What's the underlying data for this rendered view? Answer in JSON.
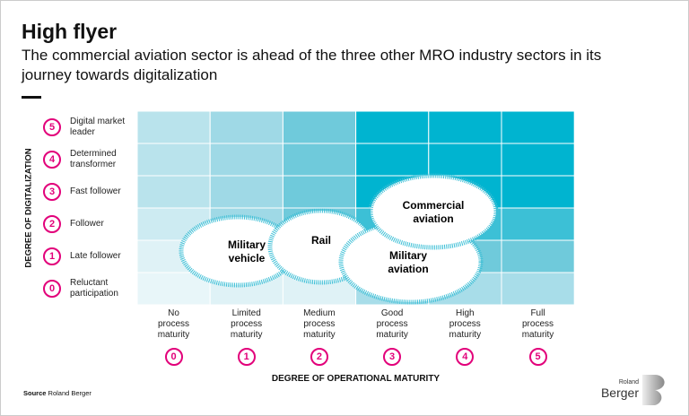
{
  "title": "High flyer",
  "subtitle": "The commercial aviation sector is ahead of the three other MRO industry sectors in its journey towards digitalization",
  "y_axis": {
    "label": "DEGREE OF DIGITALIZATION",
    "levels": [
      {
        "n": "5",
        "label": "Digital market leader"
      },
      {
        "n": "4",
        "label": "Determined transformer"
      },
      {
        "n": "3",
        "label": "Fast follower"
      },
      {
        "n": "2",
        "label": "Follower"
      },
      {
        "n": "1",
        "label": "Late follower"
      },
      {
        "n": "0",
        "label": "Reluctant participation"
      }
    ]
  },
  "x_axis": {
    "label": "DEGREE OF OPERATIONAL MATURITY",
    "levels": [
      {
        "n": "0",
        "label": "No process maturity"
      },
      {
        "n": "1",
        "label": "Limited process maturity"
      },
      {
        "n": "2",
        "label": "Medium process maturity"
      },
      {
        "n": "3",
        "label": "Good process maturity"
      },
      {
        "n": "4",
        "label": "High process maturity"
      },
      {
        "n": "5",
        "label": "Full process maturity"
      }
    ]
  },
  "cell_colors_top_to_bottom": [
    [
      "#b9e3ec",
      "#9fd9e6",
      "#6fcadb",
      "#00b4d0",
      "#00b4d0",
      "#00b4d0"
    ],
    [
      "#b9e3ec",
      "#9fd9e6",
      "#6fcadb",
      "#00b4d0",
      "#00b4d0",
      "#00b4d0"
    ],
    [
      "#b9e3ec",
      "#9fd9e6",
      "#6fcadb",
      "#00b4d0",
      "#00b4d0",
      "#00b4d0"
    ],
    [
      "#cdebf2",
      "#9fd9e6",
      "#6fcadb",
      "#3cc0d6",
      "#3cc0d6",
      "#3cc0d6"
    ],
    [
      "#dff2f6",
      "#cdebf2",
      "#9fd9e6",
      "#6fcadb",
      "#6fcadb",
      "#6fcadb"
    ],
    [
      "#e8f6f9",
      "#dff2f6",
      "#dff2f6",
      "#a8dde9",
      "#a8dde9",
      "#a8dde9"
    ]
  ],
  "sectors": [
    {
      "line1": "Military",
      "line2": "vehicle"
    },
    {
      "line1": "Rail",
      "line2": ""
    },
    {
      "line1": "Military",
      "line2": "aviation"
    },
    {
      "line1": "Commercial",
      "line2": "aviation"
    }
  ],
  "colors": {
    "accent": "#e2007a",
    "teal": "#00b4d0",
    "ellipse_border": "#3cbfd6"
  },
  "source": {
    "label": "Source",
    "text": "Roland Berger"
  },
  "logo": {
    "small": "Roland",
    "big": "Berger"
  }
}
